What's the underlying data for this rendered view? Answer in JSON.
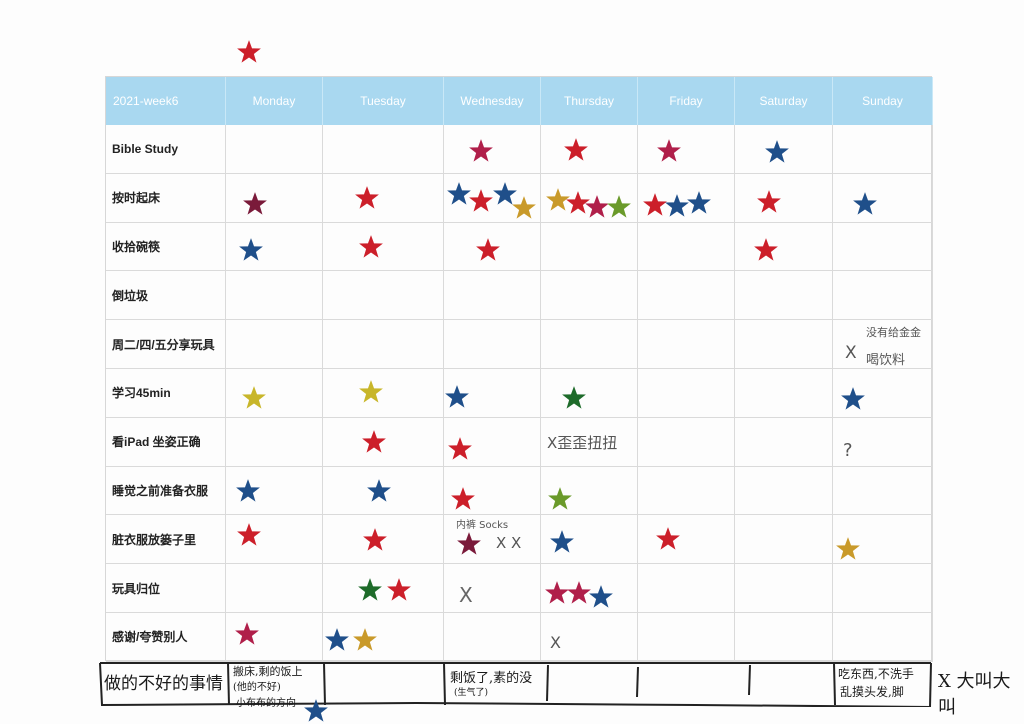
{
  "header": {
    "week": "2021-week6",
    "days": [
      "Monday",
      "Tuesday",
      "Wednesday",
      "Thursday",
      "Friday",
      "Saturday",
      "Sunday"
    ]
  },
  "rows": [
    {
      "label": "Bible Study"
    },
    {
      "label": "按时起床"
    },
    {
      "label": "收拾碗筷"
    },
    {
      "label": "倒垃圾"
    },
    {
      "label": "周二/四/五分享玩具"
    },
    {
      "label": "学习45min"
    },
    {
      "label": "看iPad 坐姿正确"
    },
    {
      "label": "睡觉之前准备衣服"
    },
    {
      "label": "脏衣服放篓子里"
    },
    {
      "label": "玩具归位"
    },
    {
      "label": "感谢/夸赞别人"
    }
  ],
  "notes": {
    "sunday_share_top": "没有给金金",
    "sunday_share_x": "X",
    "sunday_share_bottom": "喝饮料",
    "thursday_ipad": "X歪歪扭扭",
    "sunday_ipad": "?",
    "wednesday_laundry_top": "内裤  Socks",
    "wednesday_laundry_x": "X X",
    "wednesday_toys_x": "X",
    "thursday_thanks_x": "X"
  },
  "bottom": {
    "label": "做的不好的事情",
    "monday_note_1": "搬床,剩的饭上",
    "monday_note_2": "(他的不好)",
    "monday_note_3": "小布布的方向",
    "wednesday_note_1": "剩饭了,素的没",
    "wednesday_note_2": "(生气了)",
    "sunday_note_1": "吃东西,不洗手",
    "sunday_note_2": "乱摸头发,脚",
    "extra_note": "X 大叫大叫"
  },
  "colors": {
    "header_bg": "#a9d8f0",
    "red": "#cc1f2a",
    "crimson": "#b01f4a",
    "maroon": "#7a1a3a",
    "blue": "#1f4f8a",
    "green": "#1e6b2a",
    "lime": "#6a9a2a",
    "gold": "#c99a2a",
    "yellow": "#c8b62a"
  }
}
